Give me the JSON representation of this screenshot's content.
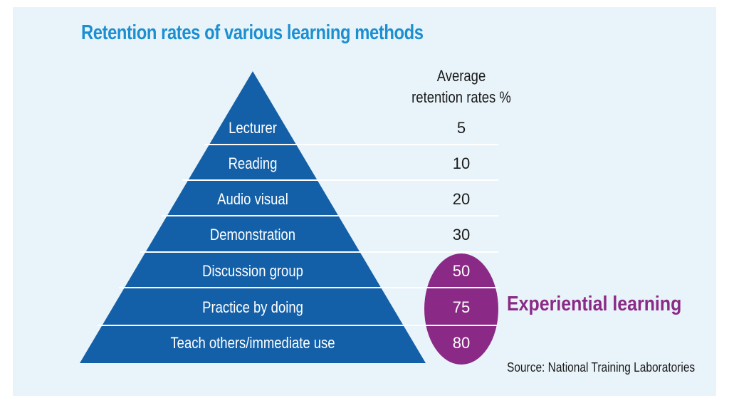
{
  "title": "Retention rates of various learning methods",
  "rates_header": {
    "line1": "Average",
    "line2": "retention rates %"
  },
  "levels": [
    {
      "label": "Lecturer",
      "rate": "5"
    },
    {
      "label": "Reading",
      "rate": "10"
    },
    {
      "label": "Audio visual",
      "rate": "20"
    },
    {
      "label": "Demonstration",
      "rate": "30"
    },
    {
      "label": "Discussion group",
      "rate": "50"
    },
    {
      "label": "Practice by doing",
      "rate": "75"
    },
    {
      "label": "Teach others/immediate use",
      "rate": "80"
    }
  ],
  "highlight_label": "Experiential learning",
  "source": "Source: National Training Laboratories",
  "colors": {
    "background": "#e9f4fa",
    "pyramid": "#1460a8",
    "title": "#1c8fd1",
    "highlight": "#8a2a86"
  }
}
